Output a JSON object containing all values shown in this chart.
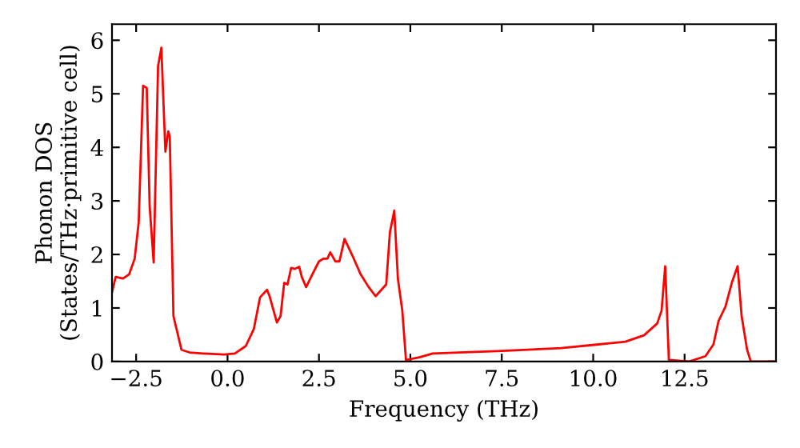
{
  "chart_data": {
    "type": "line",
    "xlabel": "Frequency (THz)",
    "ylabel": "Phonon DOS\n(States/THz·primitive cell)",
    "xlim": [
      -3.16,
      15.0
    ],
    "ylim": [
      0,
      6.3
    ],
    "xticks": [
      {
        "value": -2.5,
        "label": "−2.5"
      },
      {
        "value": 0,
        "label": "0.0"
      },
      {
        "value": 2.5,
        "label": "2.5"
      },
      {
        "value": 5,
        "label": "5.0"
      },
      {
        "value": 7.5,
        "label": "7.5"
      },
      {
        "value": 10,
        "label": "10.0"
      },
      {
        "value": 12.5,
        "label": "12.5"
      }
    ],
    "yticks": [
      0,
      1,
      2,
      3,
      4,
      5,
      6
    ],
    "grid": false,
    "legend": false,
    "series": [
      {
        "color": "#ff0000",
        "x": [
          -3.16,
          -3.06,
          -2.86,
          -2.69,
          -2.54,
          -2.43,
          -2.31,
          -2.21,
          -2.13,
          -2.02,
          -1.9,
          -1.81,
          -1.7,
          -1.62,
          -1.58,
          -1.48,
          -1.26,
          -1.04,
          -0.67,
          -0.09,
          0.2,
          0.5,
          0.72,
          0.89,
          1.08,
          1.15,
          1.35,
          1.45,
          1.55,
          1.64,
          1.74,
          1.84,
          1.96,
          2.03,
          2.15,
          2.32,
          2.5,
          2.62,
          2.73,
          2.81,
          2.95,
          3.06,
          3.2,
          3.42,
          3.64,
          3.86,
          4.05,
          4.34,
          4.44,
          4.56,
          4.66,
          4.78,
          4.88,
          5.25,
          5.61,
          7.51,
          9.12,
          10.15,
          10.88,
          11.39,
          11.75,
          11.87,
          11.97,
          12.07,
          12.63,
          13.07,
          13.29,
          13.43,
          13.62,
          13.8,
          13.95,
          14.06,
          14.21,
          14.31,
          15.0
        ],
        "values": [
          1.29,
          1.58,
          1.55,
          1.63,
          1.92,
          2.6,
          5.15,
          5.11,
          2.9,
          1.85,
          5.52,
          5.86,
          3.92,
          4.3,
          4.2,
          0.85,
          0.22,
          0.17,
          0.15,
          0.13,
          0.15,
          0.29,
          0.61,
          1.2,
          1.34,
          1.22,
          0.73,
          0.85,
          1.47,
          1.44,
          1.75,
          1.73,
          1.77,
          1.58,
          1.39,
          1.63,
          1.87,
          1.92,
          1.92,
          2.04,
          1.87,
          1.87,
          2.29,
          1.97,
          1.63,
          1.39,
          1.22,
          1.44,
          2.41,
          2.82,
          1.54,
          0.95,
          0.03,
          0.08,
          0.15,
          0.2,
          0.25,
          0.32,
          0.37,
          0.49,
          0.71,
          0.95,
          1.78,
          0.03,
          0,
          0.1,
          0.32,
          0.76,
          1.03,
          1.49,
          1.78,
          0.85,
          0.22,
          0,
          0
        ]
      }
    ]
  }
}
